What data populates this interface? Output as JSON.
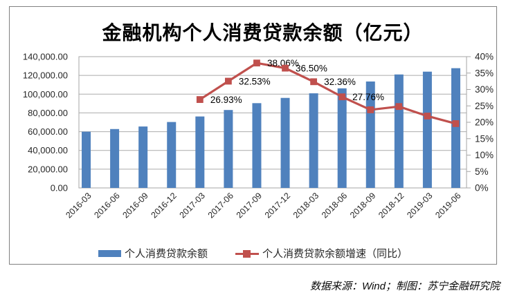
{
  "title": "金融机构个人消费贷款余额（亿元）",
  "source_note": "数据来源：Wind；制图：苏宁金融研究院",
  "legend": {
    "bar_label": "个人消费贷款余额",
    "line_label": "个人消费贷款余额增速（同比）"
  },
  "colors": {
    "bar": "#4F81BD",
    "line": "#C0504D",
    "grid": "#ABABAB",
    "plot_border": "#A6A6A6",
    "axis_line": "#808080",
    "axis_text": "#262626",
    "data_label_text": "#000000",
    "frame_border": "#808080"
  },
  "chart_data": {
    "type": "bar",
    "subtype": "combo bar + line, dual y-axes",
    "title": "金融机构个人消费贷款余额（亿元）",
    "categories": [
      "2016-03",
      "2016-06",
      "2016-09",
      "2016-12",
      "2017-03",
      "2017-06",
      "2017-09",
      "2017-12",
      "2018-03",
      "2018-06",
      "2018-09",
      "2018-12",
      "2019-03",
      "2019-06"
    ],
    "series": [
      {
        "name": "个人消费贷款余额",
        "type": "bar",
        "axis": "left",
        "values": [
          60000,
          62800,
          65500,
          70300,
          76200,
          83100,
          90400,
          96000,
          100900,
          106200,
          113500,
          121000,
          124000,
          127700
        ]
      },
      {
        "name": "个人消费贷款余额增速（同比）",
        "type": "line",
        "axis": "right",
        "values": [
          null,
          null,
          null,
          null,
          26.93,
          32.53,
          38.06,
          36.5,
          32.36,
          27.76,
          23.8,
          24.8,
          21.9,
          19.6
        ],
        "data_labels": [
          null,
          null,
          null,
          null,
          "26.93%",
          "32.53%",
          "38.06%",
          "36.50%",
          "32.36%",
          "27.76%",
          null,
          null,
          null,
          null
        ]
      }
    ],
    "left_axis": {
      "min": 0,
      "max": 140000,
      "step": 20000,
      "tick_labels_top_down": [
        "140,000.00",
        "120,000.00",
        "100,000.00",
        "80,000.00",
        "60,000.00",
        "40,000.00",
        "20,000.00",
        "0.00"
      ]
    },
    "right_axis": {
      "min": 0,
      "max": 40,
      "step": 5,
      "tick_labels_top_down": [
        "40%",
        "35%",
        "30%",
        "25%",
        "20%",
        "15%",
        "10%",
        "5%",
        "0%"
      ]
    },
    "grid": true,
    "legend_position": "bottom"
  }
}
